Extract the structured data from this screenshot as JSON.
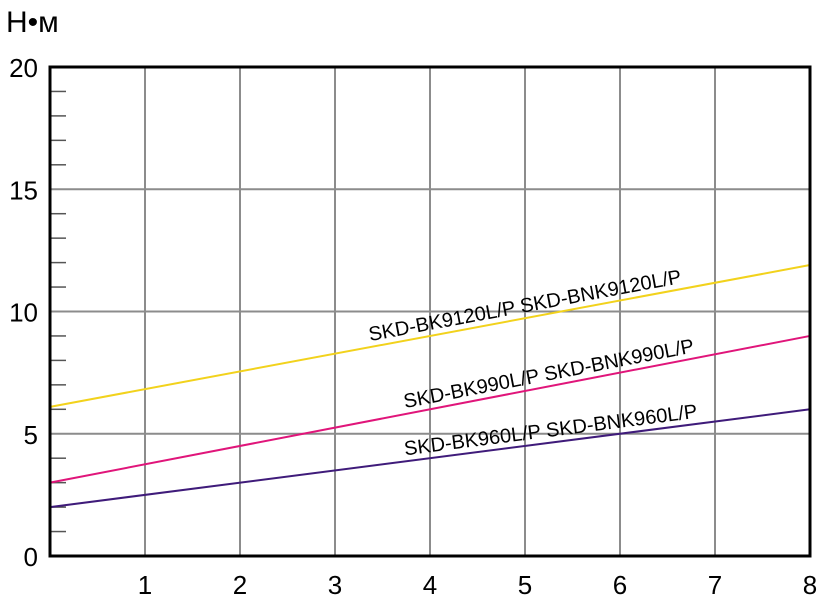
{
  "chart_data": {
    "type": "line",
    "ylabel": "Н•м",
    "xlim": [
      0,
      8
    ],
    "ylim": [
      0,
      20
    ],
    "x_ticks": [
      "1",
      "2",
      "3",
      "4",
      "5",
      "6",
      "7",
      "8"
    ],
    "y_ticks": [
      "0",
      "5",
      "10",
      "15",
      "20"
    ],
    "grid": true,
    "series": [
      {
        "name": "SKD-BK9120L/P  SKD-BNK9120L/P",
        "color": "#f2d21c",
        "x": [
          0,
          8
        ],
        "y": [
          6.1,
          11.9
        ]
      },
      {
        "name": "SKD-BK990L/P  SKD-BNK990L/P",
        "color": "#e0157a",
        "x": [
          0,
          8
        ],
        "y": [
          3.0,
          9.0
        ]
      },
      {
        "name": "SKD-BK960L/P  SKD-BNK960L/P",
        "color": "#3f1b7a",
        "x": [
          0,
          8
        ],
        "y": [
          2.0,
          6.0
        ]
      }
    ]
  }
}
